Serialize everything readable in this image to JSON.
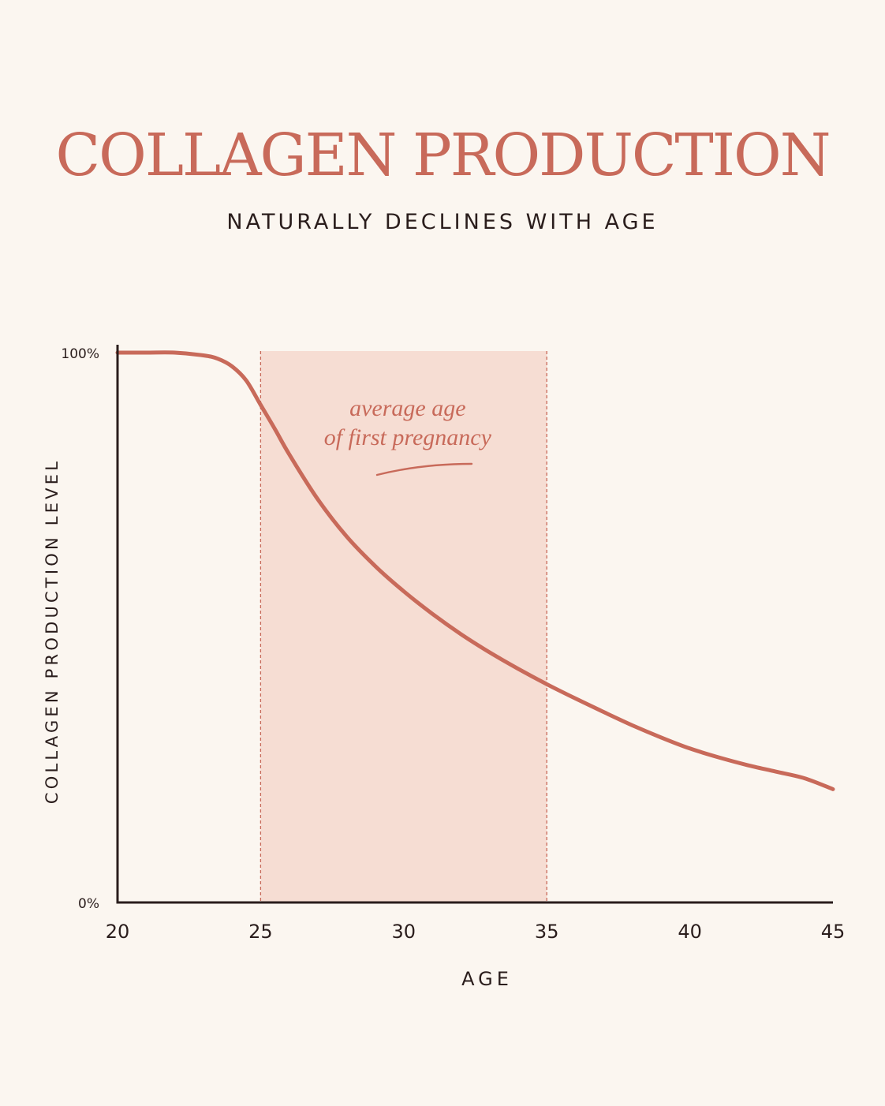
{
  "header": {
    "title": "COLLAGEN PRODUCTION",
    "subtitle": "NATURALLY DECLINES WITH AGE"
  },
  "colors": {
    "accent": "#c86a5a",
    "band": "#f6ddd3",
    "axis": "#2a1d1c",
    "background": "#fbf6f0"
  },
  "chart_data": {
    "type": "line",
    "xlabel": "AGE",
    "ylabel": "COLLAGEN PRODUCTION LEVEL",
    "xlim": [
      20,
      45
    ],
    "ylim": [
      0,
      100
    ],
    "x_ticks": [
      20,
      25,
      30,
      35,
      40,
      45
    ],
    "y_tick_labels": [
      {
        "value": 100,
        "label": "100%"
      },
      {
        "value": 0,
        "label": "0%"
      }
    ],
    "grid": false,
    "series": [
      {
        "x": [
          20,
          21,
          22,
          23,
          23.5,
          24,
          24.5,
          25,
          25.5,
          26,
          27,
          28,
          29,
          30,
          31,
          32,
          33,
          34,
          35,
          36,
          37,
          38,
          39,
          40,
          41,
          42,
          43,
          44,
          45
        ],
        "y": [
          100,
          100,
          100,
          99.5,
          98.9,
          97.5,
          94.9,
          90.5,
          86.1,
          81.5,
          73.3,
          66.6,
          61.2,
          56.6,
          52.5,
          48.8,
          45.5,
          42.5,
          39.7,
          37.1,
          34.6,
          32.2,
          30,
          28,
          26.4,
          25,
          23.8,
          22.6,
          20.6
        ]
      }
    ],
    "highlight_band": {
      "x_start": 25,
      "x_end": 35,
      "label_line1": "average age",
      "label_line2": "of first pregnancy"
    }
  }
}
